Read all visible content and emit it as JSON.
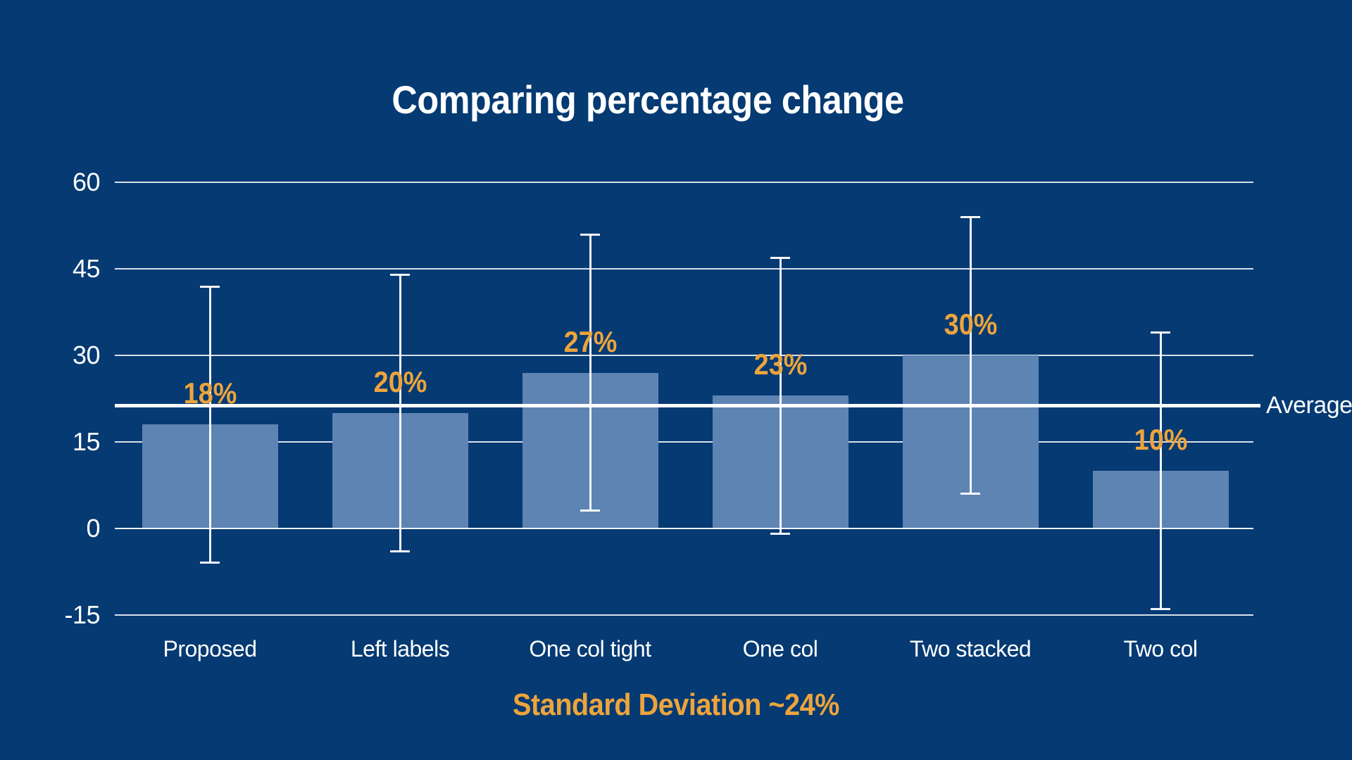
{
  "colors": {
    "background": "#053A73",
    "bar_fill": "#5E84B4",
    "accent_orange": "#EDA43C",
    "line_white": "#FFFFFF"
  },
  "chart_data": {
    "type": "bar",
    "title": "Comparing percentage change",
    "categories": [
      "Proposed",
      "Left labels",
      "One col tight",
      "One col",
      "Two stacked",
      "Two col"
    ],
    "values": [
      18,
      20,
      27,
      23,
      30,
      10
    ],
    "value_labels": [
      "18%",
      "20%",
      "27%",
      "23%",
      "30%",
      "10%"
    ],
    "error": 24,
    "average": 21.33,
    "average_label": "Average",
    "yticks": [
      60,
      45,
      30,
      15,
      0,
      -15
    ],
    "ylim": [
      -15,
      60
    ],
    "grid": true,
    "legend": "none",
    "annotation": "Standard Deviation ~24%"
  }
}
